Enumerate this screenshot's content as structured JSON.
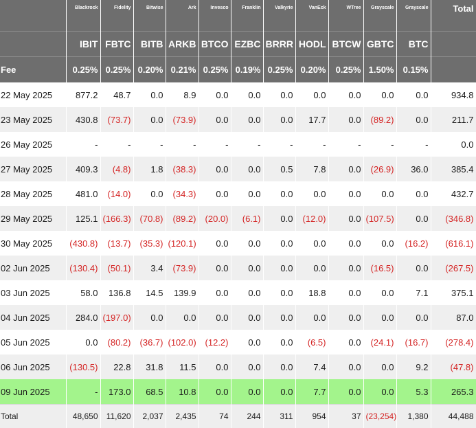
{
  "colors": {
    "header_bg": "#6e6e6e",
    "alt_row_bg": "#efefef",
    "highlight_bg": "#a3f48c",
    "negative_text": "#d42424"
  },
  "header": {
    "issuers": [
      "Blackrock",
      "Fidelity",
      "Bitwise",
      "Ark",
      "Invesco",
      "Franklin",
      "Valkyrie",
      "VanEck",
      "WTree",
      "Grayscale",
      "Grayscale"
    ],
    "total_label": "Total",
    "tickers": [
      "IBIT",
      "FBTC",
      "BITB",
      "ARKB",
      "BTCO",
      "EZBC",
      "BRRR",
      "HODL",
      "BTCW",
      "GBTC",
      "BTC"
    ],
    "fee_label": "Fee",
    "fees": [
      "0.25%",
      "0.25%",
      "0.20%",
      "0.21%",
      "0.25%",
      "0.19%",
      "0.25%",
      "0.20%",
      "0.25%",
      "1.50%",
      "0.15%"
    ]
  },
  "rows": [
    {
      "date": "22 May 2025",
      "values": [
        "877.2",
        "48.7",
        "0.0",
        "8.9",
        "0.0",
        "0.0",
        "0.0",
        "0.0",
        "0.0",
        "0.0",
        "0.0"
      ],
      "total": "934.8"
    },
    {
      "date": "23 May 2025",
      "values": [
        "430.8",
        "(73.7)",
        "0.0",
        "(73.9)",
        "0.0",
        "0.0",
        "0.0",
        "17.7",
        "0.0",
        "(89.2)",
        "0.0"
      ],
      "total": "211.7"
    },
    {
      "date": "26 May 2025",
      "values": [
        "-",
        "-",
        "-",
        "-",
        "-",
        "-",
        "-",
        "-",
        "-",
        "-",
        "-"
      ],
      "total": "0.0"
    },
    {
      "date": "27 May 2025",
      "values": [
        "409.3",
        "(4.8)",
        "1.8",
        "(38.3)",
        "0.0",
        "0.0",
        "0.5",
        "7.8",
        "0.0",
        "(26.9)",
        "36.0"
      ],
      "total": "385.4"
    },
    {
      "date": "28 May 2025",
      "values": [
        "481.0",
        "(14.0)",
        "0.0",
        "(34.3)",
        "0.0",
        "0.0",
        "0.0",
        "0.0",
        "0.0",
        "0.0",
        "0.0"
      ],
      "total": "432.7"
    },
    {
      "date": "29 May 2025",
      "values": [
        "125.1",
        "(166.3)",
        "(70.8)",
        "(89.2)",
        "(20.0)",
        "(6.1)",
        "0.0",
        "(12.0)",
        "0.0",
        "(107.5)",
        "0.0"
      ],
      "total": "(346.8)"
    },
    {
      "date": "30 May 2025",
      "values": [
        "(430.8)",
        "(13.7)",
        "(35.3)",
        "(120.1)",
        "0.0",
        "0.0",
        "0.0",
        "0.0",
        "0.0",
        "0.0",
        "(16.2)"
      ],
      "total": "(616.1)"
    },
    {
      "date": "02 Jun 2025",
      "values": [
        "(130.4)",
        "(50.1)",
        "3.4",
        "(73.9)",
        "0.0",
        "0.0",
        "0.0",
        "0.0",
        "0.0",
        "(16.5)",
        "0.0"
      ],
      "total": "(267.5)"
    },
    {
      "date": "03 Jun 2025",
      "values": [
        "58.0",
        "136.8",
        "14.5",
        "139.9",
        "0.0",
        "0.0",
        "0.0",
        "18.8",
        "0.0",
        "0.0",
        "7.1"
      ],
      "total": "375.1"
    },
    {
      "date": "04 Jun 2025",
      "values": [
        "284.0",
        "(197.0)",
        "0.0",
        "0.0",
        "0.0",
        "0.0",
        "0.0",
        "0.0",
        "0.0",
        "0.0",
        "0.0"
      ],
      "total": "87.0"
    },
    {
      "date": "05 Jun 2025",
      "values": [
        "0.0",
        "(80.2)",
        "(36.7)",
        "(102.0)",
        "(12.2)",
        "0.0",
        "0.0",
        "(6.5)",
        "0.0",
        "(24.1)",
        "(16.7)"
      ],
      "total": "(278.4)"
    },
    {
      "date": "06 Jun 2025",
      "values": [
        "(130.5)",
        "22.8",
        "31.8",
        "11.5",
        "0.0",
        "0.0",
        "0.0",
        "7.4",
        "0.0",
        "0.0",
        "9.2"
      ],
      "total": "(47.8)"
    },
    {
      "date": "09 Jun 2025",
      "values": [
        "-",
        "173.0",
        "68.5",
        "10.8",
        "0.0",
        "0.0",
        "0.0",
        "7.7",
        "0.0",
        "0.0",
        "5.3"
      ],
      "total": "265.3",
      "highlight": true
    }
  ],
  "totals": {
    "label": "Total",
    "values": [
      "48,650",
      "11,620",
      "2,037",
      "2,435",
      "74",
      "244",
      "311",
      "954",
      "37",
      "(23,254)",
      "1,380"
    ],
    "total": "44,488"
  }
}
